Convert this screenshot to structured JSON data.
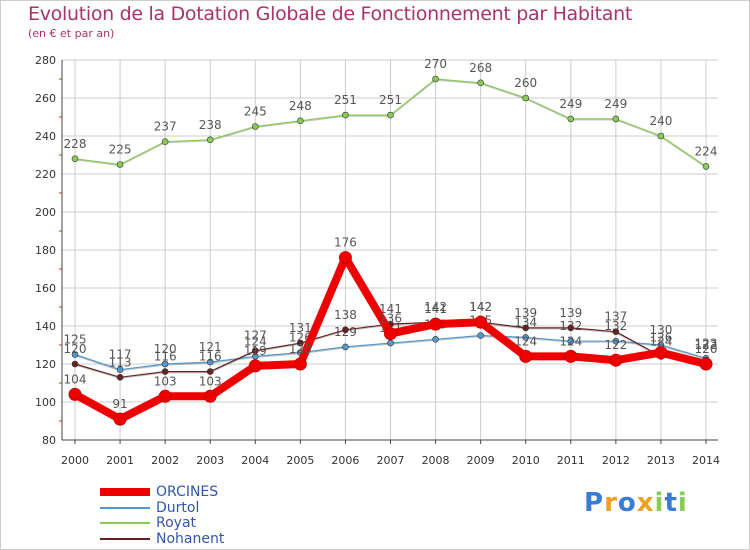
{
  "header": {
    "title": "Evolution de la Dotation Globale de Fonctionnement par Habitant",
    "subtitle": "(en € et par an)"
  },
  "brand": {
    "letters": [
      "P",
      "r",
      "o",
      "x",
      "i",
      "t",
      "i"
    ]
  },
  "chart_data": {
    "type": "line",
    "title": "Evolution de la Dotation Globale de Fonctionnement par Habitant",
    "subtitle": "(en € et par an)",
    "xlabel": "",
    "ylabel": "",
    "x": [
      2000,
      2001,
      2002,
      2003,
      2004,
      2005,
      2006,
      2007,
      2008,
      2009,
      2010,
      2011,
      2012,
      2013,
      2014
    ],
    "ylim": [
      80,
      280
    ],
    "yticks": [
      80,
      100,
      120,
      140,
      160,
      180,
      200,
      220,
      240,
      260,
      280
    ],
    "grid": true,
    "legend_position": "bottom-left",
    "series": [
      {
        "name": "Royat",
        "color": "#88cc55",
        "values": [
          228,
          225,
          237,
          238,
          245,
          248,
          251,
          251,
          270,
          268,
          260,
          249,
          249,
          240,
          224
        ],
        "labels": [
          "228",
          "225",
          "237",
          "238",
          "245",
          "248",
          "251",
          "251",
          "270",
          "268",
          "260",
          "249",
          "249",
          "240",
          "224"
        ]
      },
      {
        "name": "Durtol",
        "color": "#5599cc",
        "values": [
          125,
          117,
          120,
          121,
          124,
          126,
          129,
          131,
          133,
          135,
          134,
          132,
          132,
          130,
          123
        ],
        "labels": [
          "125",
          "117",
          "120",
          "121",
          "124",
          "126",
          "129",
          "131",
          "133",
          "135",
          "134",
          "132",
          "132",
          "130",
          "123"
        ]
      },
      {
        "name": "Nohanent",
        "color": "#662222",
        "values": [
          120,
          113,
          116,
          116,
          127,
          131,
          138,
          141,
          142,
          142,
          139,
          139,
          137,
          124,
          122
        ],
        "labels": [
          "120",
          "113",
          "116",
          "116",
          "127",
          "131",
          "138",
          "141",
          "142",
          "142",
          "139",
          "139",
          "137",
          "124",
          "122"
        ]
      },
      {
        "name": "ORCINES",
        "color": "#ee0000",
        "values": [
          104,
          91,
          103,
          103,
          119,
          120,
          176,
          136,
          141,
          142,
          124,
          124,
          122,
          126,
          120
        ],
        "labels": [
          "104",
          "91",
          "103",
          "103",
          "119",
          "120",
          "176",
          "136",
          "141",
          "142",
          "124",
          "124",
          "122",
          "126",
          "120"
        ]
      }
    ],
    "legend": [
      "ORCINES",
      "Durtol",
      "Royat",
      "Nohanent"
    ]
  },
  "colors": {
    "title": "#a8326c",
    "grid": "#cccccc",
    "axis": "#444444",
    "legend_text": "#3355aa"
  }
}
